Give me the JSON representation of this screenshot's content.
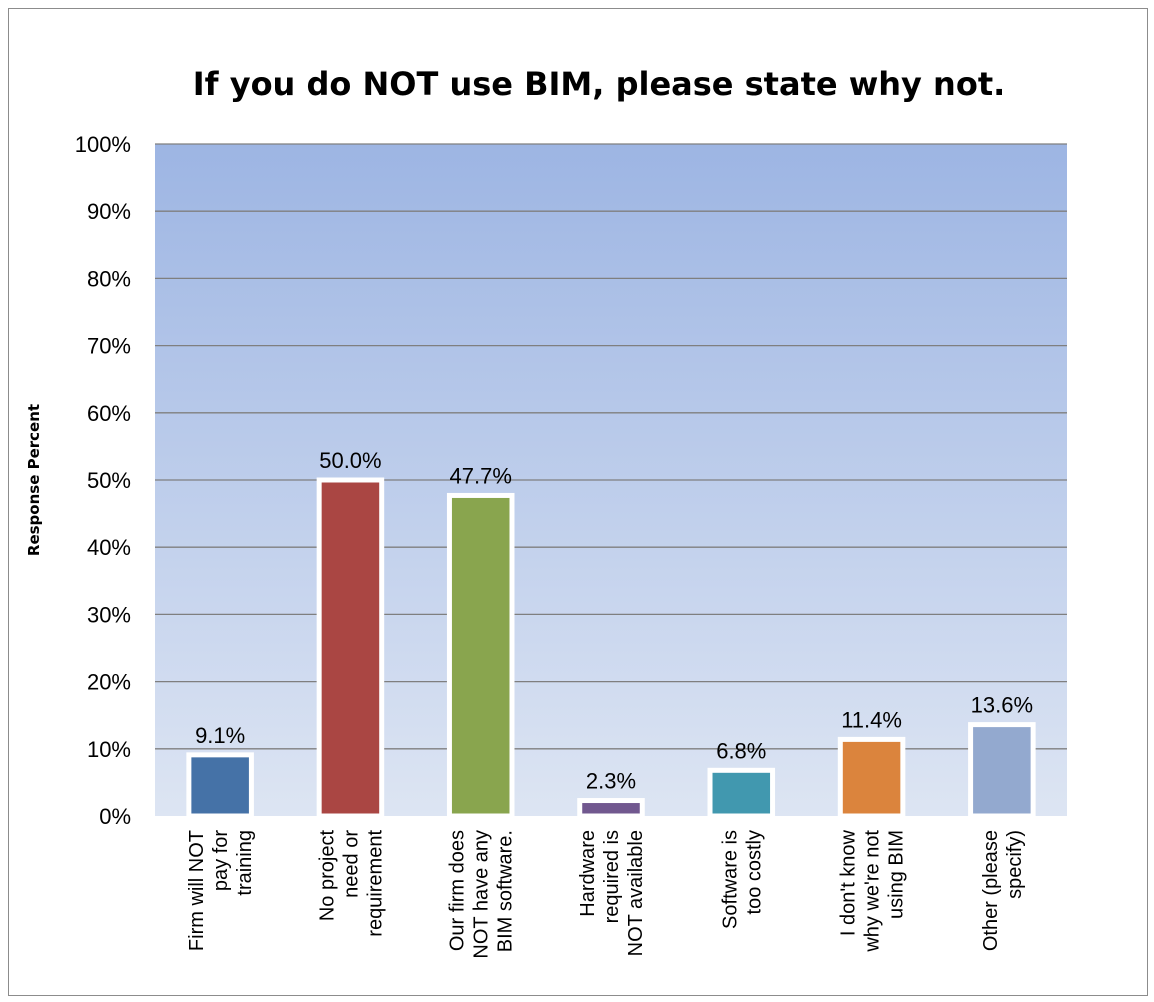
{
  "chart_data": {
    "type": "bar",
    "title": "If you do NOT use BIM, please state why not.",
    "ylabel": "Response Percent",
    "xlabel": "",
    "ylim": [
      0,
      100
    ],
    "yticks": [
      "0%",
      "10%",
      "20%",
      "30%",
      "40%",
      "50%",
      "60%",
      "70%",
      "80%",
      "90%",
      "100%"
    ],
    "grid": true,
    "legend": "none",
    "categories": [
      [
        "Firm will NOT",
        "pay for",
        "training"
      ],
      [
        "No project",
        "need or",
        "requirement"
      ],
      [
        "Our firm does",
        "NOT have any",
        "BIM software."
      ],
      [
        "Hardware",
        "required is",
        "NOT available"
      ],
      [
        "Software is",
        "too costly"
      ],
      [
        "I don't know",
        "why we're not",
        "using BIM"
      ],
      [
        "Other (please",
        "specify)"
      ]
    ],
    "values": [
      9.1,
      50.0,
      47.7,
      2.3,
      6.8,
      11.4,
      13.6
    ],
    "data_labels": [
      "9.1%",
      "50.0%",
      "47.7%",
      "2.3%",
      "6.8%",
      "11.4%",
      "13.6%"
    ],
    "colors": [
      "#4572a7",
      "#aa4643",
      "#89a54e",
      "#71588f",
      "#4198af",
      "#db843d",
      "#93a9cf"
    ],
    "plot_background": [
      "#9db5e3",
      "#dde5f3"
    ],
    "gridline_color": "#7f7f7f"
  }
}
